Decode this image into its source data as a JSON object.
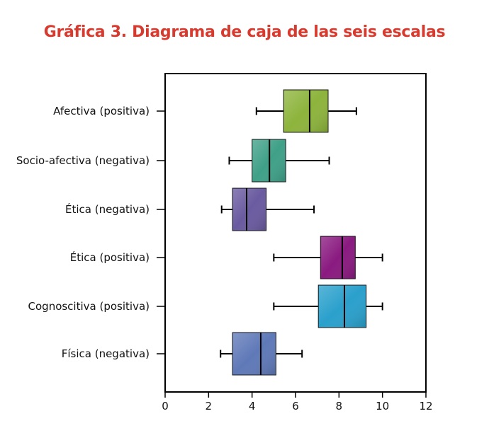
{
  "chart_data": {
    "type": "boxplot",
    "title": "Gráfica 3. Diagrama de caja de las seis escalas",
    "xlabel": "",
    "ylabel": "",
    "xlim": [
      0,
      12
    ],
    "xticks": [
      0,
      2,
      4,
      6,
      8,
      10,
      12
    ],
    "grid": false,
    "categories": [
      "Afectiva (positiva)",
      "Socio-afectiva (negativa)",
      "Ética (negativa)",
      "Ética (positiva)",
      "Cognoscitiva (positiva)",
      "Física (negativa)"
    ],
    "boxes": [
      {
        "category": "Afectiva (positiva)",
        "min": 4.2,
        "q1": 5.45,
        "median": 6.65,
        "q3": 7.5,
        "max": 8.8,
        "color": "#8db43c"
      },
      {
        "category": "Socio-afectiva (negativa)",
        "min": 2.95,
        "q1": 4.0,
        "median": 4.8,
        "q3": 5.55,
        "max": 7.55,
        "color": "#3fa088"
      },
      {
        "category": "Ética (negativa)",
        "min": 2.6,
        "q1": 3.1,
        "median": 3.75,
        "q3": 4.65,
        "max": 6.85,
        "color": "#6a5aa0"
      },
      {
        "category": "Ética (positiva)",
        "min": 5.0,
        "q1": 7.15,
        "median": 8.15,
        "q3": 8.75,
        "max": 10.0,
        "color": "#8a1a80"
      },
      {
        "category": "Cognoscitiva (positiva)",
        "min": 5.0,
        "q1": 7.05,
        "median": 8.25,
        "q3": 9.25,
        "max": 10.0,
        "color": "#2aa0cc"
      },
      {
        "category": "Física (negativa)",
        "min": 2.55,
        "q1": 3.1,
        "median": 4.4,
        "q3": 5.1,
        "max": 6.3,
        "color": "#5f79b8"
      }
    ]
  }
}
